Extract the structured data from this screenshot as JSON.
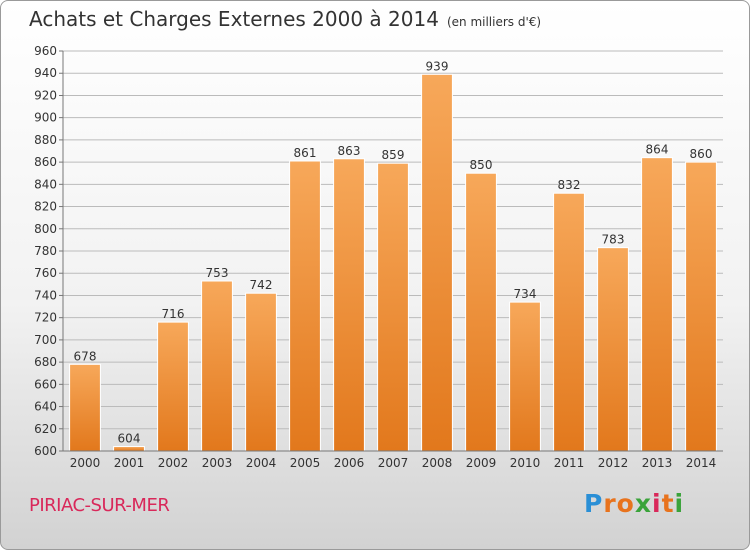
{
  "title": "Achats et Charges Externes 2000 à 2014",
  "unit": "(en milliers d'€)",
  "location": "PIRIAC-SUR-MER",
  "logo": {
    "text": "Proxiti",
    "letters": [
      "P",
      "r",
      "o",
      "x",
      "i",
      "t",
      "i"
    ],
    "colors": [
      "#2a8fd6",
      "#e8731d",
      "#e8731d",
      "#3aa33a",
      "#d9285a",
      "#e8731d",
      "#3aa33a"
    ]
  },
  "colors": {
    "bar_top": "#f7a85a",
    "bar_bottom": "#e2781c",
    "grid": "#bbbbbb",
    "location": "#d9285a"
  },
  "chart_data": {
    "type": "bar",
    "categories": [
      "2000",
      "2001",
      "2002",
      "2003",
      "2004",
      "2005",
      "2006",
      "2007",
      "2008",
      "2009",
      "2010",
      "2011",
      "2012",
      "2013",
      "2014"
    ],
    "values": [
      678,
      604,
      716,
      753,
      742,
      861,
      863,
      859,
      939,
      850,
      734,
      832,
      783,
      864,
      860
    ],
    "title": "Achats et Charges Externes 2000 à 2014",
    "subtitle": "(en milliers d'€)",
    "xlabel": "",
    "ylabel": "",
    "ylim": [
      600,
      960
    ],
    "yticks": [
      600,
      620,
      640,
      660,
      680,
      700,
      720,
      740,
      760,
      780,
      800,
      820,
      840,
      860,
      880,
      900,
      920,
      940,
      960
    ],
    "grid": true,
    "data_labels": true
  }
}
